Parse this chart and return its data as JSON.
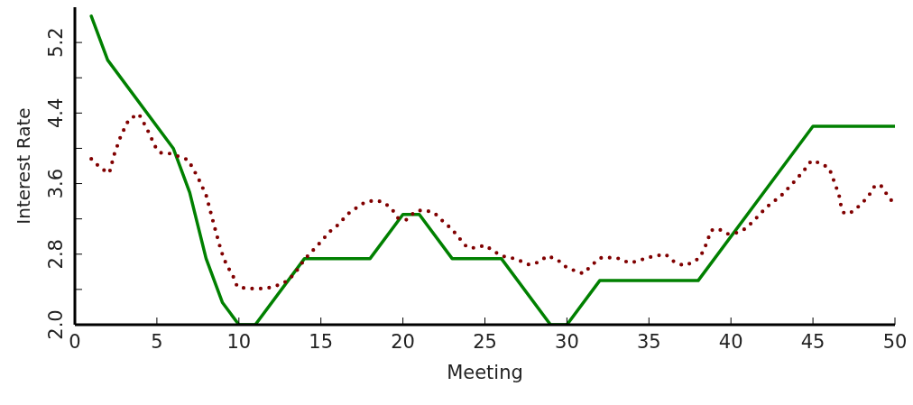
{
  "chart_data": {
    "type": "line",
    "xlabel": "Meeting",
    "ylabel": "Interest Rate",
    "xlim": [
      0,
      50
    ],
    "xticks": [
      0,
      5,
      10,
      15,
      20,
      25,
      30,
      35,
      40,
      45,
      50
    ],
    "ylim": [
      2,
      5.6
    ],
    "yticks": [
      {
        "value": 2,
        "label": "2.0"
      },
      {
        "value": 2.4,
        "label": null
      },
      {
        "value": 2.8,
        "label": "2.8"
      },
      {
        "value": 3.2,
        "label": null
      },
      {
        "value": 3.6,
        "label": "3.6"
      },
      {
        "value": 4,
        "label": null
      },
      {
        "value": 4.4,
        "label": "4.4"
      },
      {
        "value": 4.8,
        "label": null
      },
      {
        "value": 5.2,
        "label": "5.2"
      }
    ],
    "grid": false,
    "legend": false,
    "series": [
      {
        "color": "#008000",
        "line_style": "solid",
        "x": [
          1,
          2,
          6,
          7,
          8,
          9,
          10,
          11,
          14,
          18,
          20,
          21,
          23,
          26,
          29,
          30,
          32,
          38,
          45,
          50
        ],
        "values": [
          5.5,
          5.0,
          4.0,
          3.5,
          2.75,
          2.25,
          2.0,
          2.0,
          2.75,
          2.75,
          3.25,
          3.25,
          2.75,
          2.75,
          2.0,
          2.0,
          2.5,
          2.5,
          4.25,
          4.25
        ]
      },
      {
        "color": "#800000",
        "line_style": "dotted",
        "x": [
          1,
          1.6,
          2.1,
          2.4,
          2.8,
          3.3,
          3.9,
          4.4,
          4.9,
          5.2,
          5.8,
          6.3,
          6.9,
          7.2,
          7.5,
          8,
          8.3,
          8.6,
          8.9,
          9.1,
          9.4,
          9.7,
          9.9,
          10.5,
          11,
          11.6,
          12.1,
          12.7,
          13.1,
          13.6,
          14,
          14.5,
          15,
          15.5,
          16.1,
          16.6,
          17.2,
          17.7,
          18.3,
          18.8,
          19.3,
          19.7,
          20.2,
          20.8,
          21.3,
          21.9,
          22.4,
          23,
          23.4,
          23.9,
          24.4,
          25,
          25.5,
          26,
          26.6,
          27.2,
          27.7,
          28.3,
          28.8,
          29.4,
          29.9,
          30.5,
          31,
          31.6,
          32.1,
          32.7,
          33.2,
          33.8,
          34.3,
          34.9,
          35.4,
          36,
          36.5,
          37.1,
          37.6,
          38.1,
          38.4,
          38.6,
          38.8,
          39.2,
          39.8,
          40.3,
          40.9,
          41.4,
          41.9,
          42.4,
          43,
          43.5,
          44,
          44.5,
          44.9,
          45.5,
          46,
          46.2,
          46.4,
          46.6,
          46.7,
          46.9,
          47.4,
          47.9,
          48.4,
          48.7,
          49.1,
          49.5,
          49.9
        ],
        "values": [
          3.88,
          3.77,
          3.72,
          3.93,
          4.14,
          4.33,
          4.39,
          4.22,
          4.02,
          3.95,
          3.94,
          3.91,
          3.87,
          3.77,
          3.67,
          3.47,
          3.26,
          3.05,
          2.85,
          2.74,
          2.63,
          2.53,
          2.43,
          2.41,
          2.41,
          2.41,
          2.43,
          2.47,
          2.52,
          2.63,
          2.74,
          2.84,
          2.94,
          3.05,
          3.14,
          3.25,
          3.33,
          3.39,
          3.41,
          3.39,
          3.32,
          3.21,
          3.19,
          3.29,
          3.3,
          3.27,
          3.18,
          3.08,
          2.99,
          2.88,
          2.87,
          2.9,
          2.84,
          2.78,
          2.76,
          2.72,
          2.68,
          2.71,
          2.78,
          2.74,
          2.66,
          2.61,
          2.58,
          2.69,
          2.76,
          2.76,
          2.75,
          2.7,
          2.72,
          2.76,
          2.78,
          2.8,
          2.72,
          2.67,
          2.7,
          2.76,
          2.87,
          2.97,
          3.07,
          3.09,
          3.03,
          3.04,
          3.09,
          3.18,
          3.28,
          3.37,
          3.45,
          3.55,
          3.65,
          3.76,
          3.86,
          3.83,
          3.77,
          3.67,
          3.57,
          3.46,
          3.36,
          3.26,
          3.28,
          3.36,
          3.46,
          3.56,
          3.59,
          3.48,
          3.38
        ]
      }
    ]
  }
}
